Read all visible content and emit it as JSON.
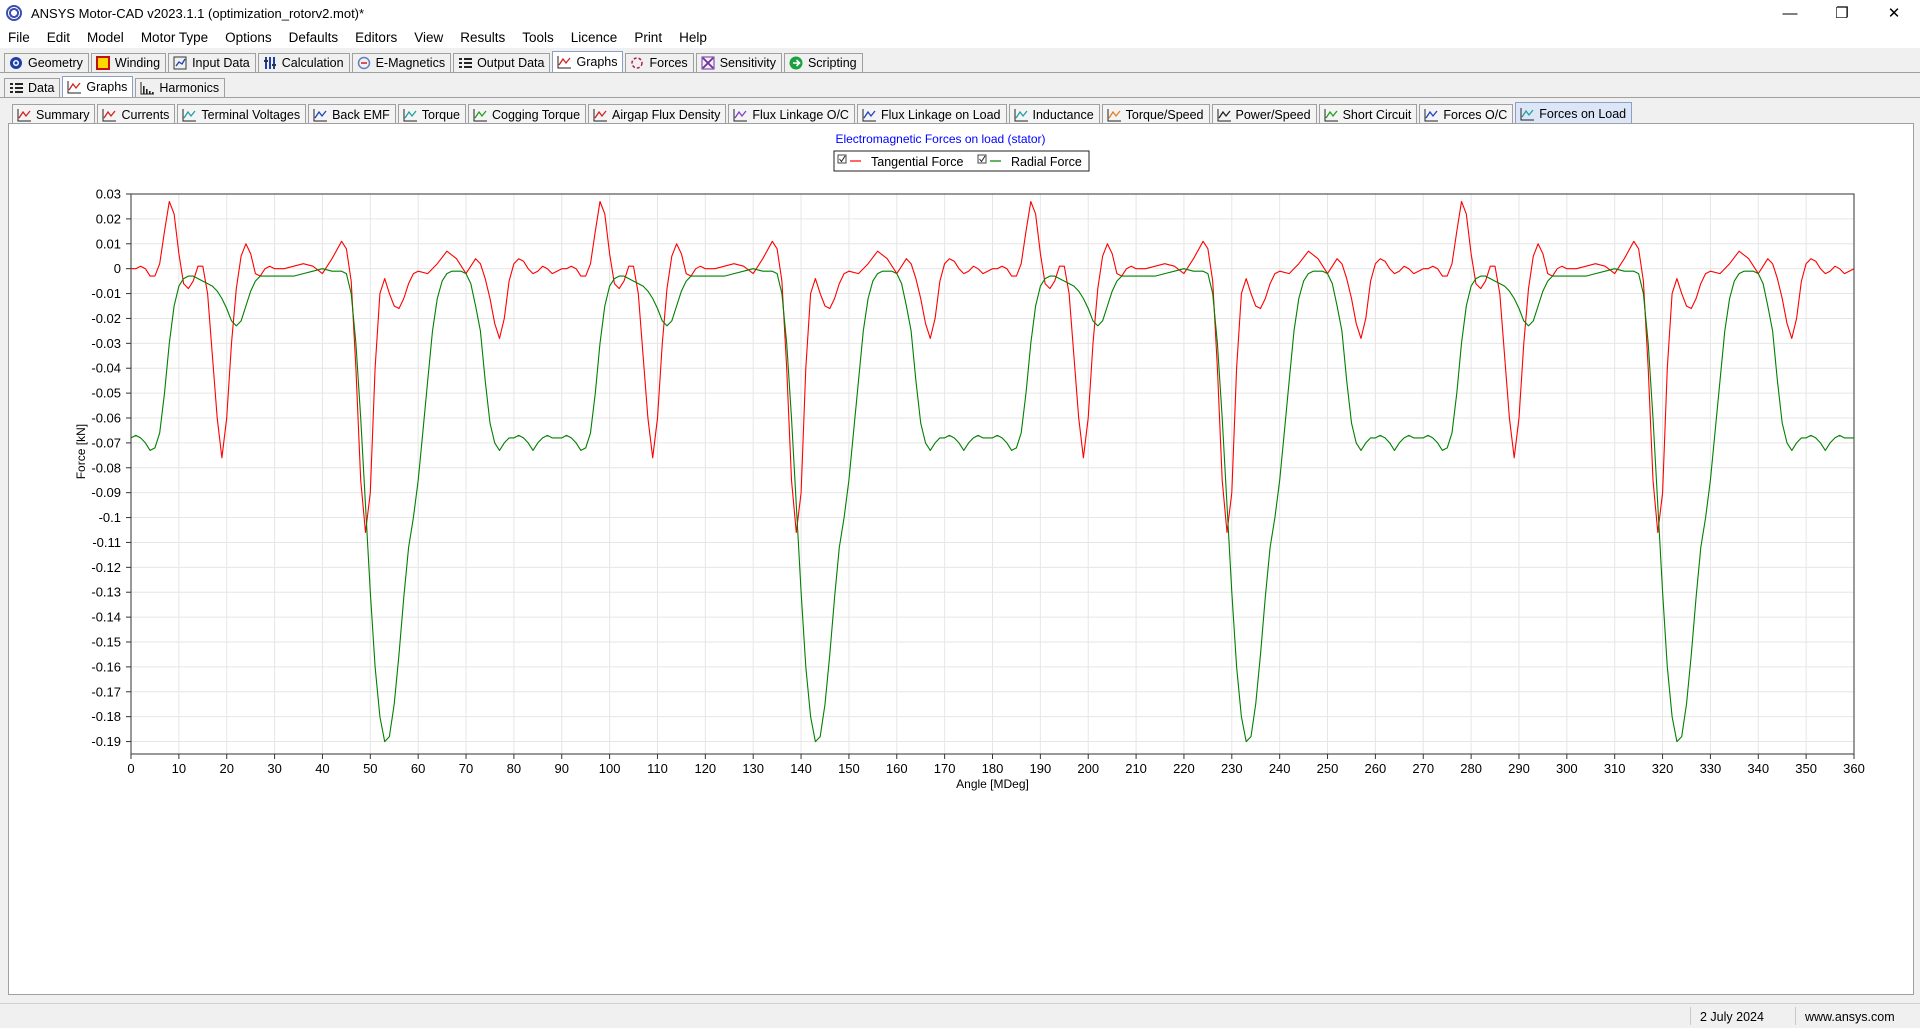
{
  "window": {
    "title": "ANSYS Motor-CAD v2023.1.1 (optimization_rotorv2.mot)*"
  },
  "menu": [
    "File",
    "Edit",
    "Model",
    "Motor Type",
    "Options",
    "Defaults",
    "Editors",
    "View",
    "Results",
    "Tools",
    "Licence",
    "Print",
    "Help"
  ],
  "main_tabs": [
    {
      "label": "Geometry",
      "icon": "geometry-icon"
    },
    {
      "label": "Winding",
      "icon": "winding-icon"
    },
    {
      "label": "Input Data",
      "icon": "input-data-icon"
    },
    {
      "label": "Calculation",
      "icon": "calculation-icon"
    },
    {
      "label": "E-Magnetics",
      "icon": "e-magnetics-icon"
    },
    {
      "label": "Output Data",
      "icon": "output-data-icon"
    },
    {
      "label": "Graphs",
      "icon": "graphs-icon",
      "active": true
    },
    {
      "label": "Forces",
      "icon": "forces-icon"
    },
    {
      "label": "Sensitivity",
      "icon": "sensitivity-icon"
    },
    {
      "label": "Scripting",
      "icon": "scripting-icon"
    }
  ],
  "sub_tabs": [
    {
      "label": "Data",
      "icon": "data-icon"
    },
    {
      "label": "Graphs",
      "icon": "graphs-icon",
      "active": true
    },
    {
      "label": "Harmonics",
      "icon": "harmonics-icon"
    }
  ],
  "graph_tabs": [
    {
      "label": "Summary",
      "color": "#d02020"
    },
    {
      "label": "Currents",
      "color": "#d02020"
    },
    {
      "label": "Terminal Voltages",
      "color": "#20a0a0"
    },
    {
      "label": "Back EMF",
      "color": "#2040c0"
    },
    {
      "label": "Torque",
      "color": "#20a0a0"
    },
    {
      "label": "Cogging Torque",
      "color": "#20a020"
    },
    {
      "label": "Airgap Flux Density",
      "color": "#d02020"
    },
    {
      "label": "Flux Linkage O/C",
      "color": "#8040c0"
    },
    {
      "label": "Flux Linkage on Load",
      "color": "#2040c0"
    },
    {
      "label": "Inductance",
      "color": "#20a0a0"
    },
    {
      "label": "Torque/Speed",
      "color": "#e08020"
    },
    {
      "label": "Power/Speed",
      "color": "#202020"
    },
    {
      "label": "Short Circuit",
      "color": "#20a020"
    },
    {
      "label": "Forces O/C",
      "color": "#2040c0"
    },
    {
      "label": "Forces on Load",
      "color": "#20a0a0",
      "active": true
    }
  ],
  "chart_data": {
    "type": "line",
    "title": "Electromagnetic Forces on load (stator)",
    "xlabel": "Angle [MDeg]",
    "ylabel": "Force [kN]",
    "xlim": [
      0,
      360
    ],
    "ylim": [
      -0.195,
      0.03
    ],
    "xticks": [
      0,
      10,
      20,
      30,
      40,
      50,
      60,
      70,
      80,
      90,
      100,
      110,
      120,
      130,
      140,
      150,
      160,
      170,
      180,
      190,
      200,
      210,
      220,
      230,
      240,
      250,
      260,
      270,
      280,
      290,
      300,
      310,
      320,
      330,
      340,
      350,
      360
    ],
    "yticks": [
      0.03,
      0.02,
      0.01,
      0,
      -0.01,
      -0.02,
      -0.03,
      -0.04,
      -0.05,
      -0.06,
      -0.07,
      -0.08,
      -0.09,
      -0.1,
      -0.11,
      -0.12,
      -0.13,
      -0.14,
      -0.15,
      -0.16,
      -0.17,
      -0.18,
      -0.19
    ],
    "ytick_labels": [
      "0.03",
      "0.02",
      "0.01",
      "0",
      "-0.01",
      "-0.02",
      "-0.03",
      "-0.04",
      "-0.05",
      "-0.06",
      "-0.07",
      "-0.08",
      "-0.09",
      "-0.1",
      "-0.11",
      "-0.12",
      "-0.13",
      "-0.14",
      "-0.15",
      "-0.16",
      "-0.17",
      "-0.18",
      "-0.19"
    ],
    "grid": true,
    "legend_position": "top-center",
    "period": 90,
    "series": [
      {
        "name": "Tangential Force",
        "color": "#ff0000",
        "x": [
          0,
          1,
          2,
          3,
          4,
          5,
          6,
          7,
          8,
          9,
          10,
          11,
          12,
          13,
          14,
          15,
          16,
          17,
          18,
          19,
          20,
          21,
          22,
          23,
          24,
          25,
          26,
          27,
          28,
          29,
          30,
          32,
          34,
          36,
          38,
          40,
          42,
          44,
          45,
          46,
          47,
          48,
          49,
          50,
          51,
          52,
          53,
          54,
          55,
          56,
          57,
          58,
          59,
          60,
          62,
          64,
          66,
          68,
          70,
          71,
          72,
          73,
          74,
          75,
          76,
          77,
          78,
          79,
          80,
          81,
          82,
          83,
          84,
          85,
          86,
          87,
          88,
          89,
          90
        ],
        "y": [
          0.0,
          0.0,
          0.001,
          0.0,
          -0.003,
          -0.003,
          0.002,
          0.015,
          0.027,
          0.022,
          0.006,
          -0.006,
          -0.008,
          -0.005,
          0.001,
          0.001,
          -0.01,
          -0.035,
          -0.06,
          -0.076,
          -0.06,
          -0.03,
          -0.008,
          0.005,
          0.01,
          0.006,
          -0.002,
          -0.003,
          0.0,
          0.001,
          0.0,
          0.0,
          0.001,
          0.002,
          0.001,
          -0.002,
          0.004,
          0.011,
          0.008,
          -0.005,
          -0.04,
          -0.085,
          -0.106,
          -0.09,
          -0.04,
          -0.01,
          -0.004,
          -0.01,
          -0.015,
          -0.016,
          -0.012,
          -0.006,
          -0.002,
          -0.001,
          -0.002,
          0.002,
          0.007,
          0.004,
          -0.002,
          0.001,
          0.004,
          0.002,
          -0.004,
          -0.012,
          -0.022,
          -0.028,
          -0.02,
          -0.005,
          0.002,
          0.004,
          0.003,
          0.0,
          -0.002,
          -0.001,
          0.001,
          0.0,
          -0.002,
          -0.001,
          0.0
        ]
      },
      {
        "name": "Radial Force",
        "color": "#008000",
        "x": [
          0,
          1,
          2,
          3,
          4,
          5,
          6,
          7,
          8,
          9,
          10,
          11,
          12,
          13,
          14,
          15,
          16,
          17,
          18,
          19,
          20,
          21,
          22,
          23,
          24,
          25,
          26,
          27,
          28,
          29,
          30,
          32,
          34,
          36,
          38,
          40,
          42,
          44,
          45,
          46,
          47,
          48,
          49,
          50,
          51,
          52,
          53,
          54,
          55,
          56,
          57,
          58,
          59,
          60,
          61,
          62,
          63,
          64,
          65,
          66,
          67,
          68,
          69,
          70,
          71,
          72,
          73,
          74,
          75,
          76,
          77,
          78,
          79,
          80,
          81,
          82,
          83,
          84,
          85,
          86,
          87,
          88,
          89,
          90
        ],
        "y": [
          -0.068,
          -0.067,
          -0.068,
          -0.07,
          -0.073,
          -0.072,
          -0.066,
          -0.05,
          -0.03,
          -0.015,
          -0.007,
          -0.004,
          -0.003,
          -0.003,
          -0.004,
          -0.005,
          -0.006,
          -0.007,
          -0.009,
          -0.012,
          -0.016,
          -0.021,
          -0.023,
          -0.021,
          -0.015,
          -0.009,
          -0.005,
          -0.003,
          -0.003,
          -0.003,
          -0.003,
          -0.003,
          -0.003,
          -0.002,
          -0.001,
          0.0,
          -0.001,
          -0.001,
          -0.002,
          -0.01,
          -0.03,
          -0.06,
          -0.095,
          -0.13,
          -0.16,
          -0.18,
          -0.19,
          -0.188,
          -0.175,
          -0.155,
          -0.132,
          -0.112,
          -0.1,
          -0.085,
          -0.065,
          -0.045,
          -0.025,
          -0.012,
          -0.005,
          -0.002,
          -0.001,
          -0.001,
          -0.001,
          -0.002,
          -0.006,
          -0.015,
          -0.025,
          -0.045,
          -0.062,
          -0.07,
          -0.073,
          -0.07,
          -0.068,
          -0.068,
          -0.067,
          -0.068,
          -0.07,
          -0.073,
          -0.07,
          -0.068,
          -0.067,
          -0.068,
          -0.068,
          -0.068
        ]
      }
    ]
  },
  "status": {
    "date": "2 July 2024",
    "website": "www.ansys.com"
  }
}
